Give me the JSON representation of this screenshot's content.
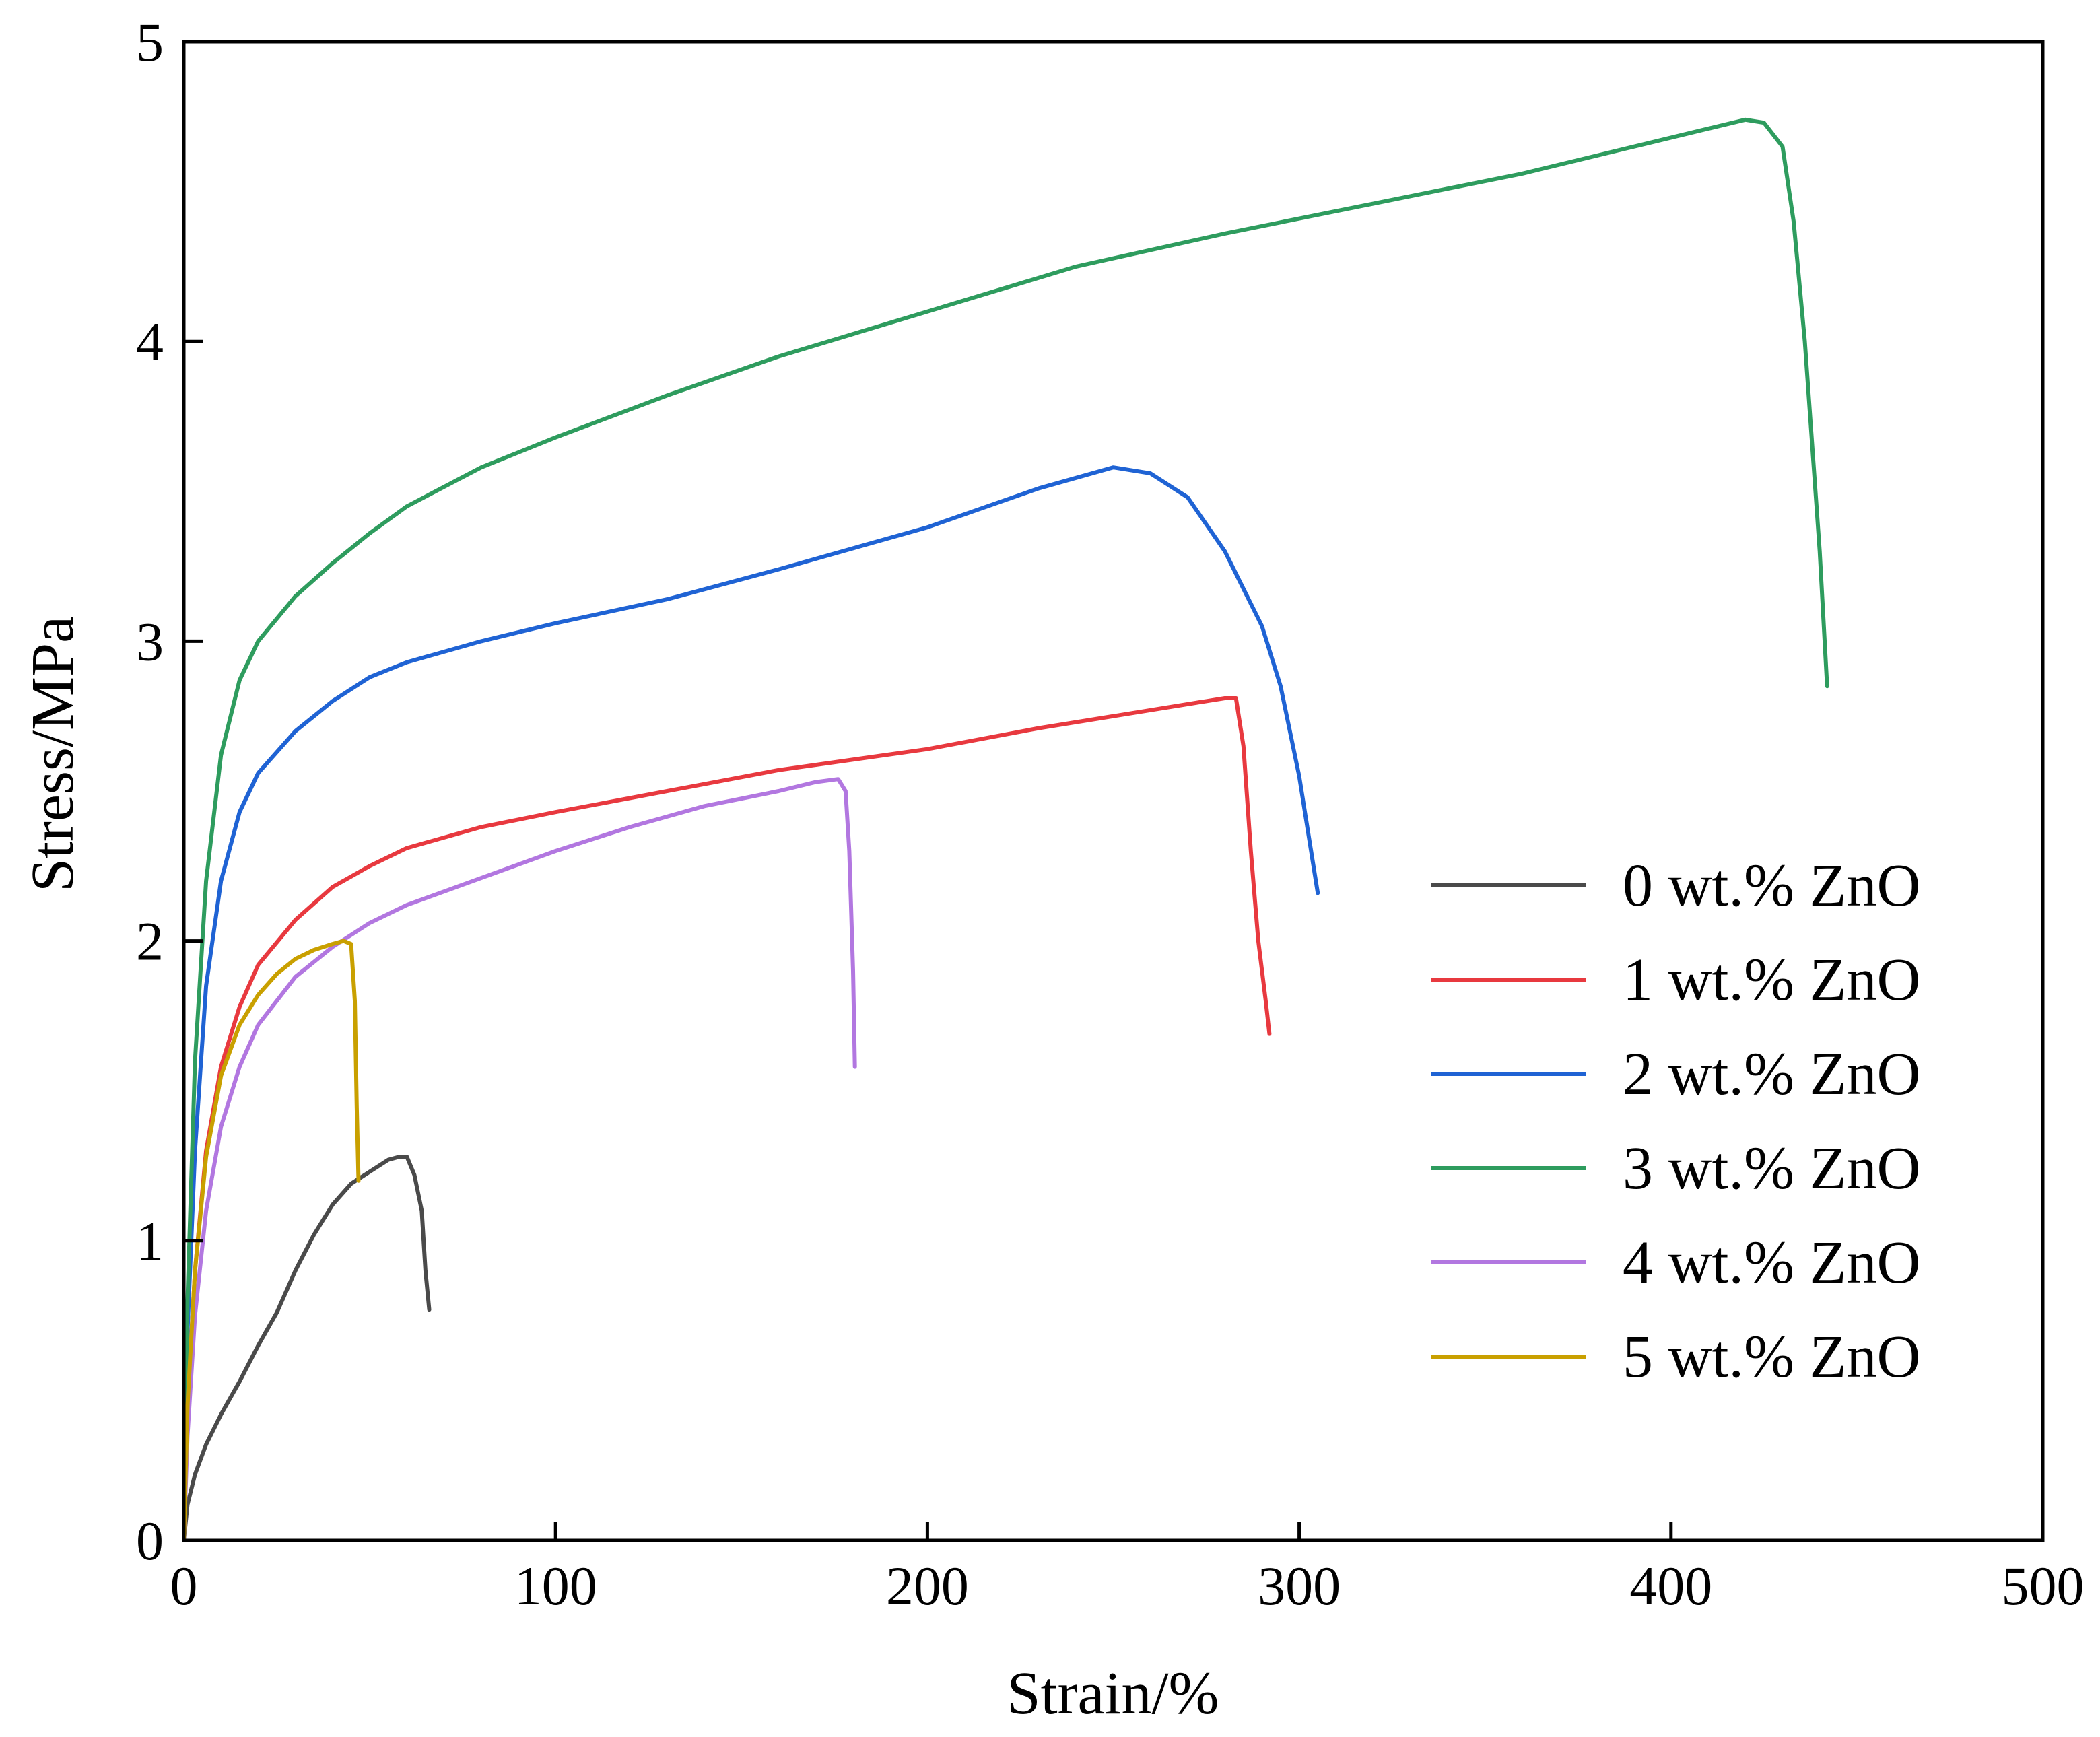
{
  "chart_data": {
    "type": "line",
    "title": "",
    "xlabel": "Strain/%",
    "ylabel": "Stress/MPa",
    "xlim": [
      0,
      500
    ],
    "ylim": [
      0,
      5
    ],
    "xticks": [
      0,
      100,
      200,
      300,
      400,
      500
    ],
    "yticks": [
      0,
      1,
      2,
      3,
      4,
      5
    ],
    "grid": false,
    "legend_position": "lower-right",
    "series": [
      {
        "name": "0 wt.% ZnO",
        "color": "#4a4a4a",
        "x": [
          0,
          1,
          3,
          6,
          10,
          15,
          20,
          25,
          30,
          35,
          40,
          45,
          50,
          55,
          58,
          60,
          62,
          64,
          65,
          66
        ],
        "y": [
          0,
          0.12,
          0.22,
          0.32,
          0.42,
          0.53,
          0.65,
          0.76,
          0.9,
          1.02,
          1.12,
          1.19,
          1.23,
          1.27,
          1.28,
          1.28,
          1.22,
          1.1,
          0.9,
          0.77
        ]
      },
      {
        "name": "1 wt.% ZnO",
        "color": "#e8393f",
        "x": [
          0,
          1,
          3,
          6,
          10,
          15,
          20,
          30,
          40,
          50,
          60,
          80,
          100,
          130,
          160,
          200,
          230,
          260,
          275,
          280,
          283,
          285,
          287,
          289,
          291,
          292
        ],
        "y": [
          0,
          0.45,
          0.9,
          1.3,
          1.58,
          1.78,
          1.92,
          2.07,
          2.18,
          2.25,
          2.31,
          2.38,
          2.43,
          2.5,
          2.57,
          2.64,
          2.71,
          2.77,
          2.8,
          2.81,
          2.81,
          2.65,
          2.3,
          2.0,
          1.8,
          1.69
        ]
      },
      {
        "name": "2 wt.% ZnO",
        "color": "#1f63d4",
        "x": [
          0,
          1,
          3,
          6,
          10,
          15,
          20,
          30,
          40,
          50,
          60,
          80,
          100,
          130,
          160,
          200,
          230,
          250,
          260,
          270,
          280,
          290,
          295,
          300,
          305
        ],
        "y": [
          0,
          0.7,
          1.3,
          1.85,
          2.2,
          2.43,
          2.56,
          2.7,
          2.8,
          2.88,
          2.93,
          3.0,
          3.06,
          3.14,
          3.24,
          3.38,
          3.51,
          3.58,
          3.56,
          3.48,
          3.3,
          3.05,
          2.85,
          2.55,
          2.16
        ]
      },
      {
        "name": "3 wt.% ZnO",
        "color": "#2e9c5e",
        "x": [
          0,
          1,
          3,
          6,
          10,
          15,
          20,
          30,
          40,
          50,
          60,
          80,
          100,
          130,
          160,
          200,
          240,
          280,
          320,
          360,
          390,
          410,
          420,
          425,
          430,
          433,
          436,
          440,
          442
        ],
        "y": [
          0,
          0.8,
          1.6,
          2.2,
          2.62,
          2.87,
          3.0,
          3.15,
          3.26,
          3.36,
          3.45,
          3.58,
          3.68,
          3.82,
          3.95,
          4.1,
          4.25,
          4.36,
          4.46,
          4.56,
          4.65,
          4.71,
          4.74,
          4.73,
          4.65,
          4.4,
          4.0,
          3.3,
          2.85
        ]
      },
      {
        "name": "4 wt.% ZnO",
        "color": "#b277e0",
        "x": [
          0,
          1,
          3,
          6,
          10,
          15,
          20,
          30,
          40,
          50,
          60,
          80,
          100,
          120,
          140,
          160,
          170,
          176,
          178,
          179,
          180,
          180.5
        ],
        "y": [
          0,
          0.35,
          0.75,
          1.1,
          1.38,
          1.58,
          1.72,
          1.88,
          1.98,
          2.06,
          2.12,
          2.21,
          2.3,
          2.38,
          2.45,
          2.5,
          2.53,
          2.54,
          2.5,
          2.3,
          1.9,
          1.58
        ]
      },
      {
        "name": "5 wt.% ZnO",
        "color": "#c9a000",
        "x": [
          0,
          1,
          3,
          6,
          10,
          15,
          20,
          25,
          30,
          35,
          40,
          43,
          45,
          46,
          46.5,
          47
        ],
        "y": [
          0,
          0.45,
          0.9,
          1.28,
          1.55,
          1.72,
          1.82,
          1.89,
          1.94,
          1.97,
          1.99,
          2.0,
          1.99,
          1.8,
          1.45,
          1.2
        ]
      }
    ]
  }
}
